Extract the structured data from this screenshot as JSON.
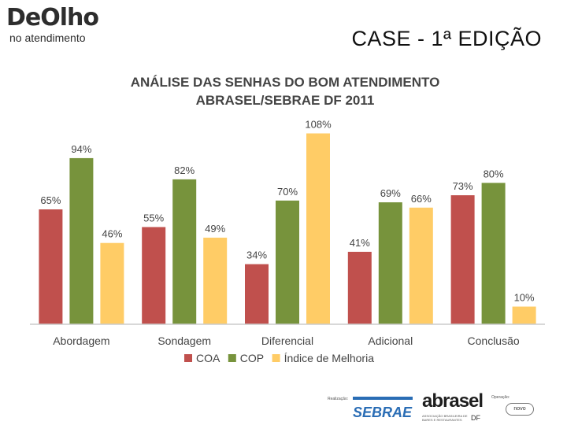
{
  "header": {
    "logo_brand": "DeOlho",
    "logo_sub": "no atendimento",
    "case_title": "CASE - 1ª EDIÇÃO"
  },
  "footer": {
    "realizacao": "Realização:",
    "sebrae": "SEBRAE",
    "abrasel": "abrasel",
    "abrasel_sub": "ASSOCIAÇÃO BRASILEIRA DE BARES E RESTAURANTES",
    "df": "DF",
    "operacao": "Operação:",
    "novo": "novo"
  },
  "chart_data": {
    "type": "bar",
    "title": [
      "ANÁLISE DAS SENHAS DO BOM ATENDIMENTO",
      "ABRASEL/SEBRAE DF 2011"
    ],
    "categories": [
      "Abordagem",
      "Sondagem",
      "Diferencial",
      "Adicional",
      "Conclusão"
    ],
    "series": [
      {
        "name": "COA",
        "color": "#c0504d",
        "values": [
          65,
          55,
          34,
          41,
          73
        ]
      },
      {
        "name": "COP",
        "color": "#77933c",
        "values": [
          94,
          82,
          70,
          69,
          80
        ]
      },
      {
        "name": "Índice de Melhoria",
        "color": "#ffcc66",
        "values": [
          46,
          49,
          108,
          66,
          10
        ]
      }
    ],
    "value_suffix": "%",
    "ylim": [
      0,
      110
    ],
    "legend_position": "bottom",
    "grid": false
  }
}
